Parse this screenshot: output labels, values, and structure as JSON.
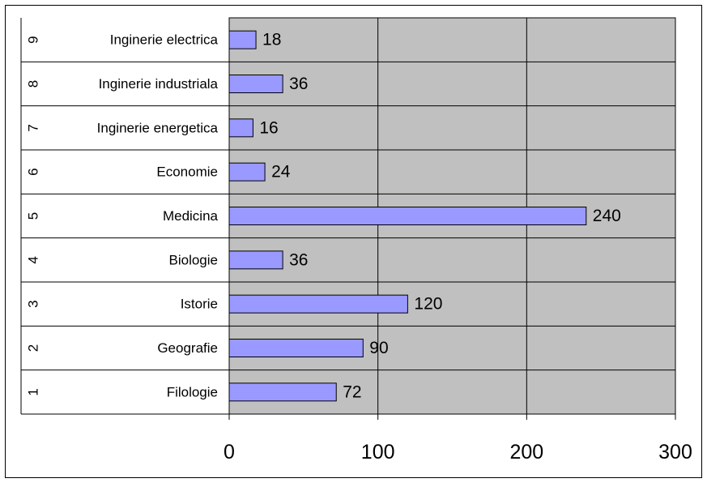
{
  "chart_data": {
    "type": "bar",
    "orientation": "horizontal",
    "title": "",
    "xlabel": "",
    "ylabel": "",
    "categories": [
      {
        "index": "1",
        "label": "Filologie",
        "value": 72
      },
      {
        "index": "2",
        "label": "Geografie",
        "value": 90
      },
      {
        "index": "3",
        "label": "Istorie",
        "value": 120
      },
      {
        "index": "4",
        "label": "Biologie",
        "value": 36
      },
      {
        "index": "5",
        "label": "Medicina",
        "value": 240
      },
      {
        "index": "6",
        "label": "Economie",
        "value": 24
      },
      {
        "index": "7",
        "label": "Inginerie energetica",
        "value": 16
      },
      {
        "index": "8",
        "label": "Inginerie industriala",
        "value": 36
      },
      {
        "index": "9",
        "label": "Inginerie electrica",
        "value": 18
      }
    ],
    "xlim": [
      0,
      300
    ],
    "x_ticks": [
      "0",
      "100",
      "200",
      "300"
    ],
    "grid": true,
    "legend": "none",
    "colors": {
      "bar_fill": "#9999ff",
      "bar_stroke": "#000000",
      "plot_background": "#c0c0c0",
      "gridline": "#000000"
    }
  }
}
